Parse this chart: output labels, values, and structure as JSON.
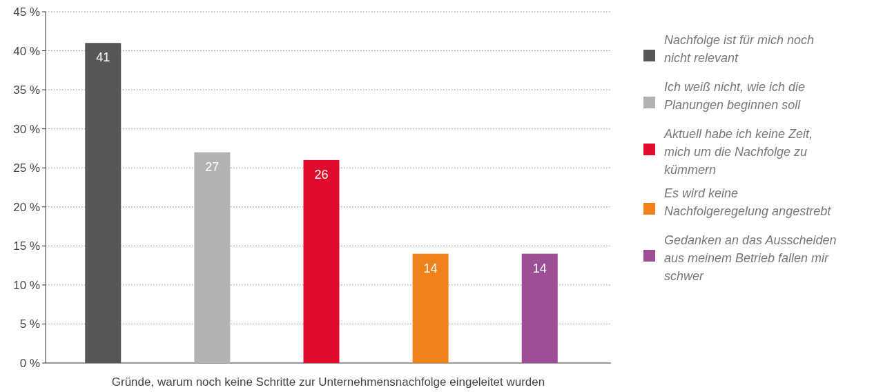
{
  "chart_data": {
    "type": "bar",
    "xlabel": "Gründe, warum noch keine Schritte zur Unternehmensnachfolge eingeleitet wurden",
    "categories": [
      null,
      null,
      null,
      null,
      null
    ],
    "series": [
      {
        "name": "Nachfolge ist für mich noch nicht relevant",
        "color": "#575756",
        "values": [
          41,
          null,
          null,
          null,
          null
        ]
      },
      {
        "name": "Ich weiß nicht, wie ich die Planungen beginnen soll",
        "color": "#b2b2b2",
        "values": [
          null,
          27,
          null,
          null,
          null
        ]
      },
      {
        "name": "Aktuell habe ich keine Zeit, mich um die Nachfolge zu kümmern",
        "color": "#e30b2c",
        "values": [
          null,
          null,
          26,
          null,
          null
        ]
      },
      {
        "name": "Es wird keine Nachfolgeregelung angestrebt",
        "color": "#ef8219",
        "values": [
          null,
          null,
          null,
          14,
          null
        ]
      },
      {
        "name": "Gedanken an das Ausscheiden aus meinem Betrieb fallen mir schwer",
        "color": "#9c4f97",
        "values": [
          null,
          null,
          null,
          null,
          14
        ]
      }
    ],
    "ylim": [
      0,
      45
    ],
    "yticks": [
      {
        "value": 0,
        "label": "0 %"
      },
      {
        "value": 5,
        "label": "5 %"
      },
      {
        "value": 10,
        "label": "10 %"
      },
      {
        "value": 15,
        "label": "15 %"
      },
      {
        "value": 20,
        "label": "20 %"
      },
      {
        "value": 25,
        "label": "25 %"
      },
      {
        "value": 30,
        "label": "30 %"
      },
      {
        "value": 35,
        "label": "35 %"
      },
      {
        "value": 40,
        "label": "40 %"
      },
      {
        "value": 45,
        "label": "45 %"
      }
    ],
    "grid": "y",
    "legend": "right",
    "data_labels": true,
    "tick_labels": "y"
  }
}
